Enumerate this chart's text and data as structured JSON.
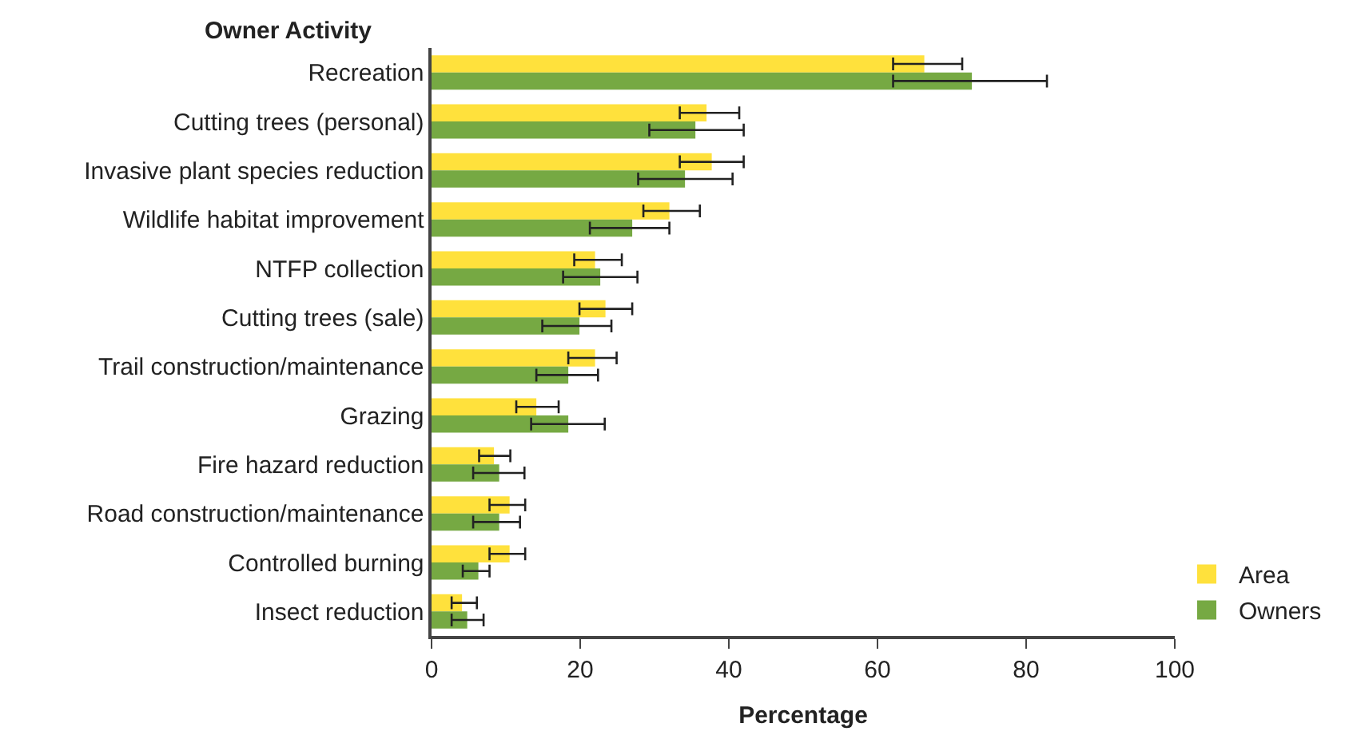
{
  "chart_data": {
    "type": "bar",
    "orientation": "horizontal",
    "ylabel": "Owner Activity",
    "xlabel": "Percentage",
    "categories": [
      "Recreation",
      "Cutting trees (personal)",
      "Invasive plant species reduction",
      "Wildlife habitat improvement",
      "NTFP collection",
      "Cutting trees (sale)",
      "Trail construction/maintenance",
      "Grazing",
      "Fire hazard reduction",
      "Road construction/maintenance",
      "Controlled burning",
      "Insect reduction"
    ],
    "series": [
      {
        "name": "Area",
        "color": "#ffe13c",
        "values": [
          66.3,
          37.0,
          37.7,
          32.0,
          22.0,
          23.4,
          22.0,
          14.1,
          8.4,
          10.5,
          10.5,
          4.1
        ],
        "errors": [
          [
            62.1,
            71.4
          ],
          [
            33.4,
            41.4
          ],
          [
            33.4,
            42.0
          ],
          [
            28.5,
            36.1
          ],
          [
            19.2,
            25.6
          ],
          [
            19.9,
            27.0
          ],
          [
            18.4,
            24.9
          ],
          [
            11.4,
            17.1
          ],
          [
            6.4,
            10.6
          ],
          [
            7.8,
            12.6
          ],
          [
            7.8,
            12.6
          ],
          [
            2.7,
            6.1
          ]
        ]
      },
      {
        "name": "Owners",
        "color": "#76a943",
        "values": [
          72.7,
          35.5,
          34.1,
          27.0,
          22.7,
          19.9,
          18.4,
          18.4,
          9.1,
          9.1,
          6.3,
          4.8
        ],
        "errors": [
          [
            62.1,
            82.8
          ],
          [
            29.3,
            42.0
          ],
          [
            27.8,
            40.5
          ],
          [
            21.3,
            32.0
          ],
          [
            17.7,
            27.7
          ],
          [
            14.9,
            24.2
          ],
          [
            14.1,
            22.4
          ],
          [
            13.4,
            23.3
          ],
          [
            5.6,
            12.5
          ],
          [
            5.6,
            11.9
          ],
          [
            4.2,
            7.8
          ],
          [
            2.7,
            7.0
          ]
        ]
      }
    ],
    "xlim": [
      0,
      100
    ],
    "xticks": [
      0,
      20,
      40,
      60,
      80,
      100
    ],
    "legend": "bottom right"
  }
}
